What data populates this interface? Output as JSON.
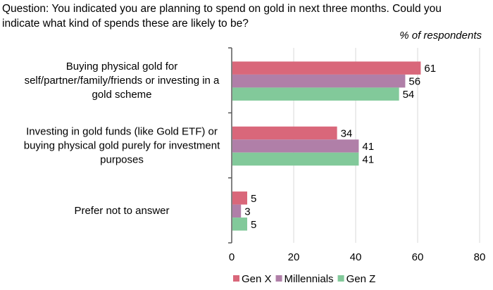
{
  "chart_data": {
    "type": "bar",
    "orientation": "horizontal",
    "title": "Question: You indicated you are planning to spend on gold in next three months. Could you indicate what kind of spends these are likely to be?",
    "title_lines": [
      "Question: You indicated you are planning to spend on gold in next three months. Could you",
      "indicate what kind of spends these are likely to be?"
    ],
    "unit_label": "% of respondents",
    "categories": [
      "Buying physical gold for self/partner/family/friends or investing in a gold scheme",
      "Investing in gold funds (like Gold ETF) or buying physical gold purely for investment purposes",
      "Prefer not to answer"
    ],
    "category_lines": [
      [
        "Buying physical gold for",
        "self/partner/family/friends or investing in a",
        "gold scheme"
      ],
      [
        "Investing in gold funds (like Gold ETF) or",
        "buying physical gold purely for investment",
        "purposes"
      ],
      [
        "Prefer not to answer"
      ]
    ],
    "series": [
      {
        "name": "Gen X",
        "color": "#d9677a",
        "values": [
          61,
          34,
          5
        ]
      },
      {
        "name": "Millennials",
        "color": "#b07fa8",
        "values": [
          56,
          41,
          3
        ]
      },
      {
        "name": "Gen Z",
        "color": "#82c99a",
        "values": [
          54,
          41,
          5
        ]
      }
    ],
    "xlim": [
      0,
      80
    ],
    "xticks": [
      0,
      20,
      40,
      60,
      80
    ],
    "grid": true,
    "data_labels": true,
    "legend_position": "bottom"
  }
}
